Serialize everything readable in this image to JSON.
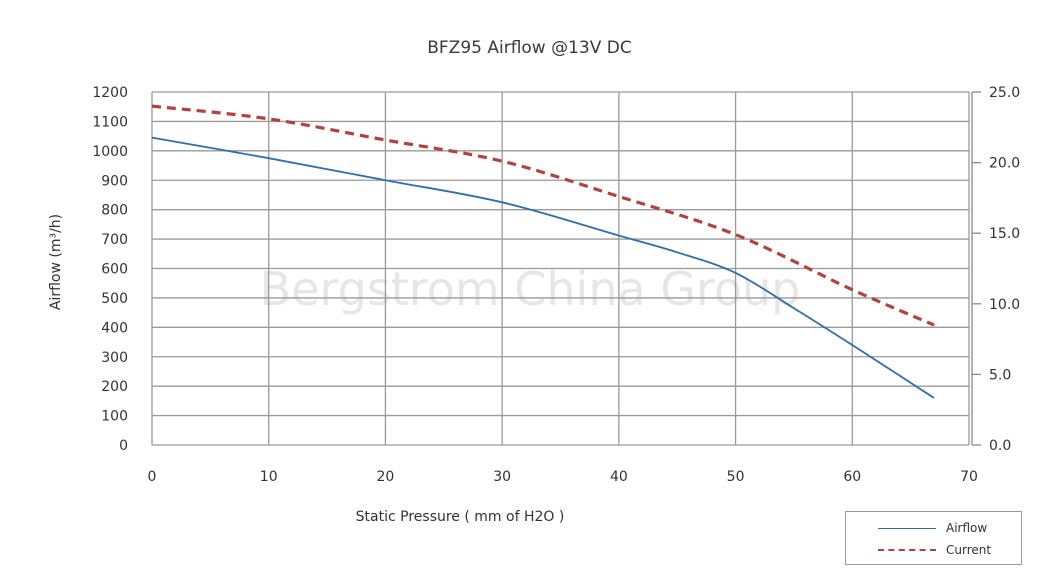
{
  "chart_data": {
    "type": "line",
    "title": "BFZ95 Airflow @13V DC",
    "xlabel": "Static Pressure ( mm of H2O )",
    "ylabel": "Airflow (m³/h)",
    "y2label": "",
    "xlim": [
      0,
      70
    ],
    "ylim": [
      0,
      1200
    ],
    "y2lim": [
      0,
      25
    ],
    "x_ticks": [
      "0",
      "10",
      "20",
      "30",
      "40",
      "50",
      "60",
      "70"
    ],
    "y_ticks": [
      "0",
      "100",
      "200",
      "300",
      "400",
      "500",
      "600",
      "700",
      "800",
      "900",
      "1000",
      "1100",
      "1200"
    ],
    "y2_ticks": [
      "0.0",
      "5.0",
      "10.0",
      "15.0",
      "20.0",
      "25.0"
    ],
    "grid": true,
    "legend_position": "bottom-right",
    "watermark": "Bergstrom China Group",
    "series": [
      {
        "name": "Airflow",
        "axis": "left",
        "style": "solid",
        "color": "#2e6fad",
        "x": [
          0,
          10,
          20,
          30,
          40,
          45,
          50,
          55,
          60,
          67
        ],
        "values": [
          1045,
          975,
          900,
          825,
          712,
          655,
          585,
          465,
          340,
          160
        ]
      },
      {
        "name": "Current",
        "axis": "right",
        "style": "dashed",
        "color": "#b5413e",
        "x": [
          0,
          10,
          20,
          30,
          40,
          50,
          60,
          67
        ],
        "values": [
          24.0,
          23.1,
          21.6,
          20.1,
          17.6,
          14.9,
          11.0,
          8.5
        ]
      }
    ]
  },
  "legend": {
    "items": [
      {
        "label": "Airflow"
      },
      {
        "label": "Current"
      }
    ]
  }
}
